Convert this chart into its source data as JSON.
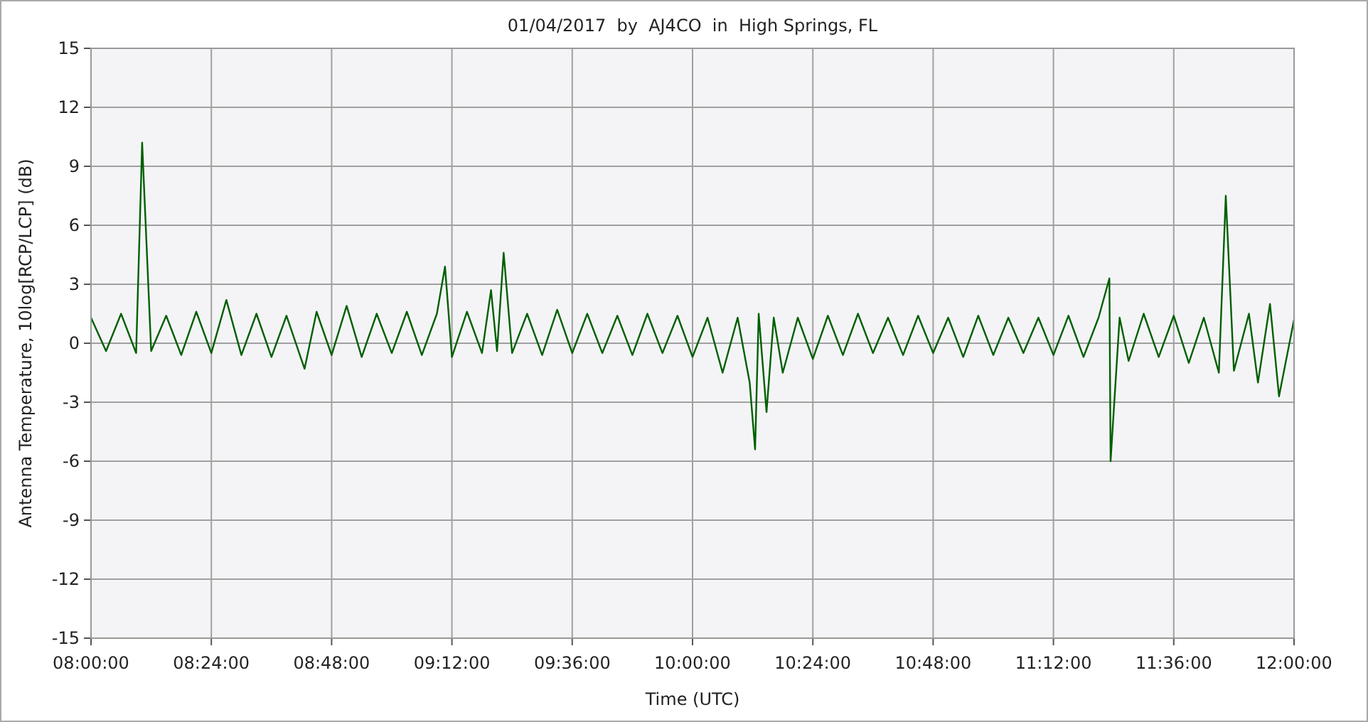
{
  "chart_data": {
    "type": "line",
    "title": "01/04/2017  by  AJ4CO  in  High Springs, FL",
    "xlabel": "Time (UTC)",
    "ylabel": "Antenna Temperature, 10log[RCP/LCP] (dB)",
    "xlim": [
      8,
      12
    ],
    "xticks": [
      {
        "value": 8,
        "label": "08:00:00"
      },
      {
        "value": 8.4,
        "label": "08:24:00"
      },
      {
        "value": 8.8,
        "label": "08:48:00"
      },
      {
        "value": 9.2,
        "label": "09:12:00"
      },
      {
        "value": 9.6,
        "label": "09:36:00"
      },
      {
        "value": 10,
        "label": "10:00:00"
      },
      {
        "value": 10.4,
        "label": "10:24:00"
      },
      {
        "value": 10.8,
        "label": "10:48:00"
      },
      {
        "value": 11.2,
        "label": "11:12:00"
      },
      {
        "value": 11.6,
        "label": "11:36:00"
      },
      {
        "value": 12,
        "label": "12:00:00"
      }
    ],
    "ylim": [
      -15,
      15
    ],
    "yticks": [
      -15,
      -12,
      -9,
      -6,
      -3,
      0,
      3,
      6,
      9,
      12,
      15
    ],
    "grid": true,
    "series": [
      {
        "color": "#005f00",
        "x": [
          8.0,
          8.05,
          8.1,
          8.15,
          8.17,
          8.2,
          8.25,
          8.3,
          8.35,
          8.4,
          8.45,
          8.5,
          8.55,
          8.6,
          8.65,
          8.71,
          8.75,
          8.8,
          8.85,
          8.9,
          8.95,
          9.0,
          9.05,
          9.1,
          9.15,
          9.177,
          9.2,
          9.25,
          9.3,
          9.33,
          9.35,
          9.372,
          9.4,
          9.45,
          9.5,
          9.55,
          9.6,
          9.65,
          9.7,
          9.75,
          9.8,
          9.85,
          9.9,
          9.95,
          10.0,
          10.05,
          10.1,
          10.15,
          10.19,
          10.208,
          10.22,
          10.246,
          10.27,
          10.3,
          10.35,
          10.4,
          10.45,
          10.5,
          10.55,
          10.6,
          10.65,
          10.7,
          10.75,
          10.8,
          10.85,
          10.9,
          10.95,
          11.0,
          11.05,
          11.1,
          11.15,
          11.2,
          11.25,
          11.3,
          11.35,
          11.386,
          11.39,
          11.42,
          11.45,
          11.5,
          11.55,
          11.6,
          11.65,
          11.7,
          11.75,
          11.773,
          11.8,
          11.85,
          11.88,
          11.92,
          11.95,
          12.0
        ],
        "values": [
          1.3,
          -0.4,
          1.5,
          -0.5,
          10.2,
          -0.4,
          1.4,
          -0.6,
          1.6,
          -0.5,
          2.2,
          -0.6,
          1.5,
          -0.7,
          1.4,
          -1.3,
          1.6,
          -0.6,
          1.9,
          -0.7,
          1.5,
          -0.5,
          1.6,
          -0.6,
          1.5,
          3.9,
          -0.7,
          1.6,
          -0.5,
          2.7,
          -0.4,
          4.6,
          -0.5,
          1.5,
          -0.6,
          1.7,
          -0.5,
          1.5,
          -0.5,
          1.4,
          -0.6,
          1.5,
          -0.5,
          1.4,
          -0.7,
          1.3,
          -1.5,
          1.3,
          -2.0,
          -5.4,
          1.5,
          -3.5,
          1.3,
          -1.5,
          1.3,
          -0.8,
          1.4,
          -0.6,
          1.5,
          -0.5,
          1.3,
          -0.6,
          1.4,
          -0.5,
          1.3,
          -0.7,
          1.4,
          -0.6,
          1.3,
          -0.5,
          1.3,
          -0.6,
          1.4,
          -0.7,
          1.3,
          3.3,
          -6.0,
          1.3,
          -0.9,
          1.5,
          -0.7,
          1.4,
          -1.0,
          1.3,
          -1.5,
          7.5,
          -1.4,
          1.5,
          -2.0,
          2.0,
          -2.7,
          1.2
        ]
      }
    ]
  }
}
